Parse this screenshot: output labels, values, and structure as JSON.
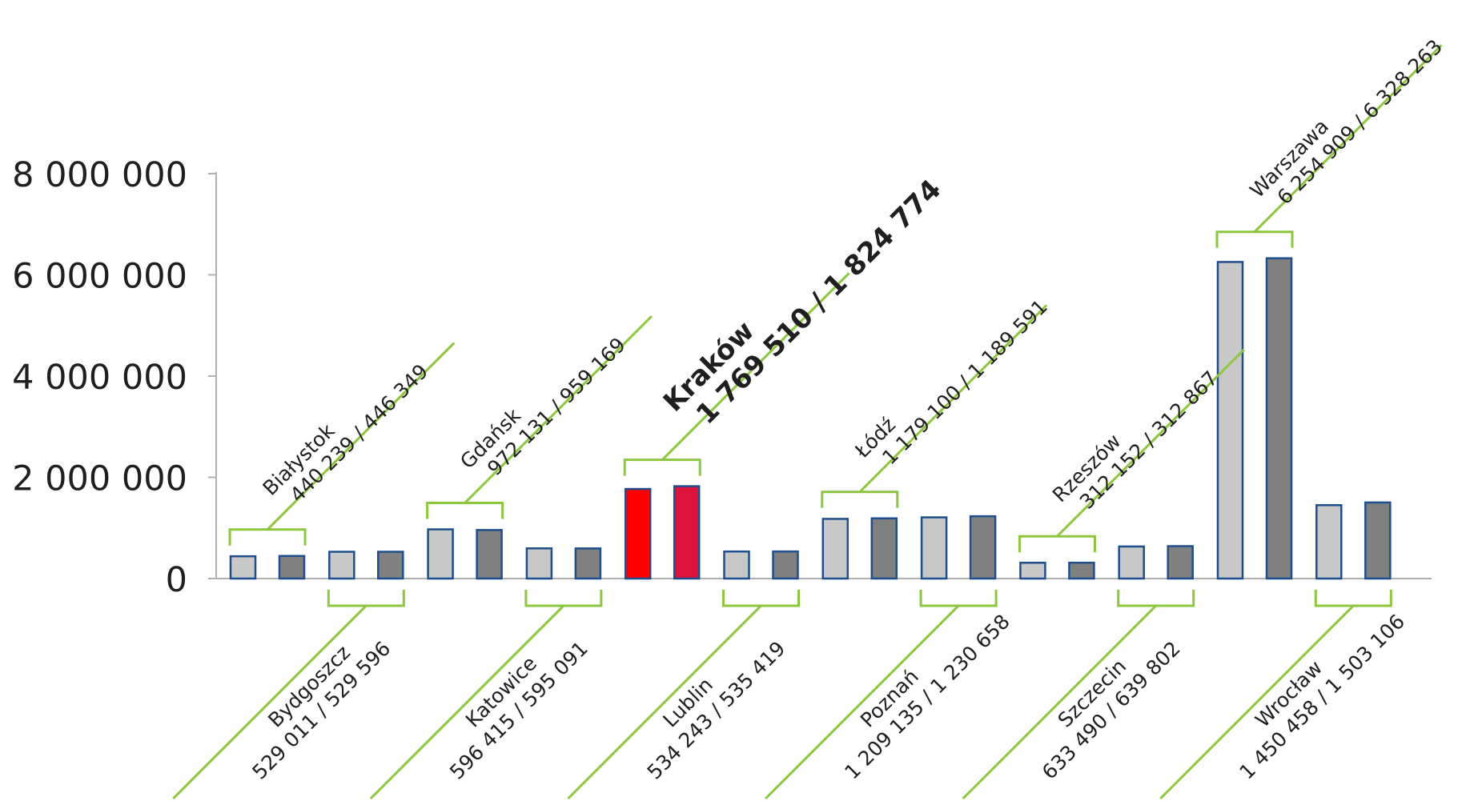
{
  "chart_data": {
    "type": "bar",
    "ylim": [
      0,
      8000000
    ],
    "yticks": [
      {
        "value": 0,
        "label": "0"
      },
      {
        "value": 2000000,
        "label": "2 000 000"
      },
      {
        "value": 4000000,
        "label": "4 000 000"
      },
      {
        "value": 6000000,
        "label": "6 000 000"
      },
      {
        "value": 8000000,
        "label": "8 000 000"
      }
    ],
    "grid": false,
    "colors": {
      "series_a_fill": "#c8c8c8",
      "series_b_fill": "#808080",
      "bar_stroke": "#1f4e8c",
      "highlight_a_fill": "#ff0000",
      "highlight_b_fill": "#dc143c",
      "bracket_color": "#8dc63f",
      "axis_color": "#b0b0b0"
    },
    "categories": [
      "Białystok",
      "Bydgoszcz",
      "Gdańsk",
      "Katowice",
      "Kraków",
      "Lublin",
      "Łódź",
      "Poznań",
      "Rzeszów",
      "Szczecin",
      "Warszawa",
      "Wrocław"
    ],
    "series": [
      {
        "values": [
          440239,
          529011,
          972131,
          596415,
          1769510,
          534243,
          1179100,
          1209135,
          312152,
          633490,
          6254909,
          1450458
        ]
      },
      {
        "values": [
          446349,
          529596,
          959169,
          595091,
          1824774,
          535419,
          1189591,
          1230658,
          312867,
          639802,
          6328263,
          1503106
        ]
      }
    ],
    "labels": [
      {
        "city": "Białystok",
        "values": "440 239 / 446 349",
        "position": "top",
        "highlight": false
      },
      {
        "city": "Bydgoszcz",
        "values": "529 011 / 529 596",
        "position": "bottom",
        "highlight": false
      },
      {
        "city": "Gdańsk",
        "values": "972 131 / 959 169",
        "position": "top",
        "highlight": false
      },
      {
        "city": "Katowice",
        "values": "596 415 / 595 091",
        "position": "bottom",
        "highlight": false
      },
      {
        "city": "Kraków",
        "values": "1 769 510 / 1 824 774",
        "position": "top",
        "highlight": true
      },
      {
        "city": "Lublin",
        "values": "534 243 / 535 419",
        "position": "bottom",
        "highlight": false
      },
      {
        "city": "Łódź",
        "values": "1 179 100 / 1 189 591",
        "position": "top",
        "highlight": false
      },
      {
        "city": "Poznań",
        "values": "1 209 135 / 1 230 658",
        "position": "bottom",
        "highlight": false
      },
      {
        "city": "Rzeszów",
        "values": "312 152 / 312 867",
        "position": "top",
        "highlight": false
      },
      {
        "city": "Szczecin",
        "values": "633 490 / 639 802",
        "position": "bottom",
        "highlight": false
      },
      {
        "city": "Warszawa",
        "values": "6 254 909 / 6 328 263",
        "position": "top",
        "highlight": false
      },
      {
        "city": "Wrocław",
        "values": "1 450 458 / 1 503 106",
        "position": "bottom",
        "highlight": false
      }
    ]
  }
}
